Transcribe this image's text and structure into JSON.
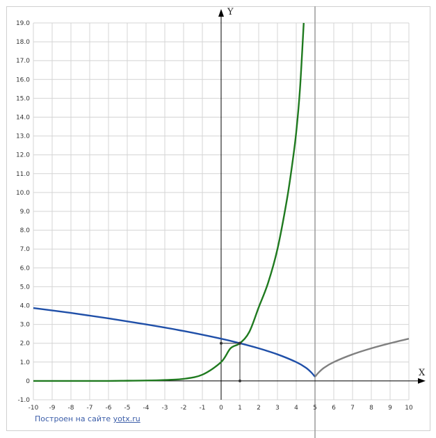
{
  "chart_data": {
    "type": "line",
    "xlabel": "X",
    "ylabel": "Y",
    "xlim": [
      -10,
      10
    ],
    "ylim": [
      -1,
      19
    ],
    "x_ticks": [
      "-10",
      "-9",
      "-8",
      "-7",
      "-6",
      "-5",
      "-4",
      "-3",
      "-2",
      "-1",
      "0",
      "1",
      "2",
      "3",
      "4",
      "5",
      "6",
      "7",
      "8",
      "9",
      "10"
    ],
    "y_ticks": [
      "-1.0",
      "0",
      "1.0",
      "2.0",
      "3.0",
      "4.0",
      "5.0",
      "6.0",
      "7.0",
      "8.0",
      "9.0",
      "10.0",
      "11.0",
      "12.0",
      "13.0",
      "14.0",
      "15.0",
      "16.0",
      "17.0",
      "18.0",
      "19.0"
    ],
    "grid": true,
    "vertical_line_x": 5,
    "series": [
      {
        "color": "#1f7a1f",
        "x": [
          -10,
          -8,
          -6,
          -5,
          -4,
          -3,
          -2,
          -1,
          0,
          0.5,
          1,
          1.5,
          2,
          2.5,
          3,
          3.5,
          3.8,
          4,
          4.2,
          4.4
        ],
        "y": [
          0.0,
          0.0,
          0.0,
          0.01,
          0.02,
          0.05,
          0.11,
          0.33,
          1.0,
          1.73,
          2.0,
          2.6,
          3.9,
          5.2,
          7.0,
          9.6,
          11.6,
          13.2,
          15.5,
          19.0
        ]
      },
      {
        "color": "#1f4fa8",
        "x": [
          -10,
          -8,
          -6,
          -4,
          -2,
          0,
          1,
          2,
          3,
          4,
          4.5,
          4.8,
          5
        ],
        "y": [
          3.87,
          3.61,
          3.32,
          3.0,
          2.65,
          2.24,
          2.0,
          1.73,
          1.41,
          1.0,
          0.71,
          0.45,
          0.22
        ]
      },
      {
        "color": "#808080",
        "x": [
          5,
          5.2,
          5.5,
          6,
          7,
          8,
          9,
          10
        ],
        "y": [
          0.22,
          0.45,
          0.71,
          1.0,
          1.41,
          1.73,
          2.0,
          2.24
        ]
      }
    ],
    "marked_point": {
      "x": 1,
      "y": 2
    }
  },
  "credit": {
    "text": "Построен на сайте ",
    "link": "yotx.ru"
  }
}
